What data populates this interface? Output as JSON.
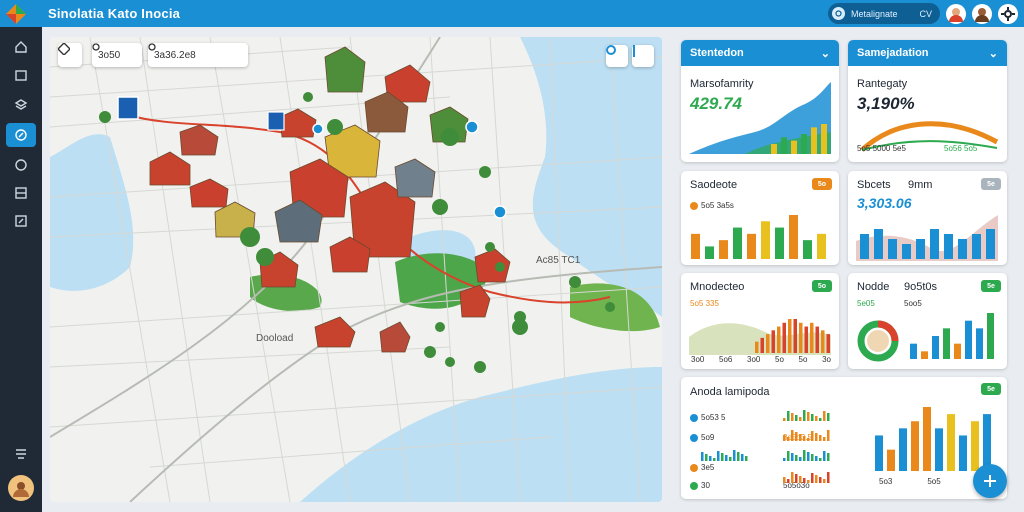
{
  "app": {
    "title": "Sinolatia Kato Inocia"
  },
  "header": {
    "search_text": "Metalignate",
    "search_suffix": "CV"
  },
  "map": {
    "zoom_label": "3o50",
    "search_value": "3a36.2e8",
    "label_downtown": "Dooload",
    "label_district": "Ac85 TC1"
  },
  "panels": {
    "top_left": {
      "header": "Stentedon",
      "title": "Marsofamrity",
      "value": "429.74",
      "chart_data": {
        "type": "area",
        "values": [
          2,
          3,
          4,
          4.5,
          5,
          6,
          7,
          9,
          10
        ]
      }
    },
    "top_right": {
      "header": "Samejadation",
      "title": "Rantegaty",
      "value": "3,190%",
      "labels": [
        "5o5 5000 5e5",
        "5o56 5o5"
      ]
    },
    "mid_left": {
      "title": "Saodeote",
      "badge": "5o",
      "legend": "5o5 3a5s",
      "chart_data": {
        "type": "bar",
        "values": [
          4,
          2,
          3,
          5,
          4,
          6,
          5,
          7,
          3,
          4
        ]
      }
    },
    "mid_right": {
      "title": "Sbcets",
      "title2": "9mm",
      "badge": "5e",
      "value": "3,303.06",
      "chart_data": {
        "type": "bar",
        "values": [
          5,
          6,
          4,
          3,
          4,
          6,
          5,
          4,
          5,
          6
        ]
      }
    },
    "low_left": {
      "title": "Mnodecteo",
      "badge": "5o",
      "legend": "5o5 335",
      "labels": [
        "3o0",
        "5o6",
        "3o0",
        "5o",
        "5o",
        "3o"
      ]
    },
    "low_right": {
      "title": "Nodde",
      "title2": "9o5t0s",
      "badge": "5e",
      "legend1": "5e05",
      "legend2": "5oo5"
    },
    "bottom": {
      "title": "Anoda lamipoda",
      "badge": "5e",
      "rows": [
        {
          "label": "5o53 5",
          "color": "#1b8fd3"
        },
        {
          "label": "5o9",
          "color": "#1b8fd3"
        },
        {
          "label": "3e5",
          "color": "#e9891b"
        },
        {
          "label": "30",
          "color": "#2da94f"
        }
      ],
      "right_labels": [
        "5o3",
        "5o5",
        "5o5"
      ],
      "mid_label": "3o5o3.5",
      "foot_label": "5o5o3o"
    }
  },
  "colors": {
    "accent": "#1b8fd3",
    "green": "#2da94f",
    "orange": "#e9891b",
    "yellow": "#e8c11f",
    "red": "#d9422b"
  }
}
